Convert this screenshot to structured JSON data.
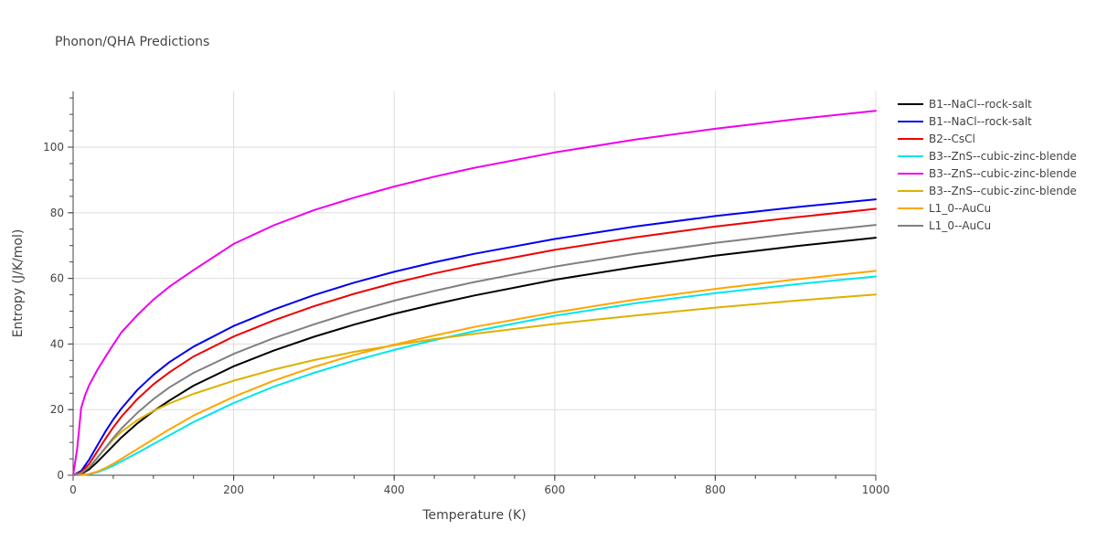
{
  "chart_data": {
    "type": "line",
    "title": "Phonon/QHA Predictions",
    "xlabel": "Temperature (K)",
    "ylabel": "Entropy (J/K/mol)",
    "xlim": [
      0,
      1000
    ],
    "ylim": [
      0,
      117
    ],
    "xticks": [
      0,
      200,
      400,
      600,
      800,
      1000
    ],
    "yticks": [
      0,
      20,
      40,
      60,
      80,
      100
    ],
    "grid": true,
    "legend": "right",
    "series": [
      {
        "name": "B1--NaCl--rock-salt",
        "color": "#000000",
        "x": [
          0,
          10,
          20,
          30,
          40,
          50,
          60,
          80,
          100,
          120,
          150,
          200,
          250,
          300,
          350,
          400,
          450,
          500,
          600,
          700,
          800,
          900,
          1000
        ],
        "y": [
          0,
          0.4,
          1.8,
          4.0,
          6.5,
          9.0,
          11.5,
          15.8,
          19.5,
          22.8,
          27.3,
          33.2,
          38.0,
          42.2,
          45.9,
          49.2,
          52.1,
          54.8,
          59.6,
          63.5,
          66.9,
          69.8,
          72.4
        ]
      },
      {
        "name": "B1--NaCl--rock-salt",
        "color": "#0000ee",
        "x": [
          0,
          10,
          20,
          30,
          40,
          50,
          60,
          80,
          100,
          120,
          150,
          200,
          250,
          300,
          350,
          400,
          450,
          500,
          600,
          700,
          800,
          900,
          1000
        ],
        "y": [
          0,
          1.3,
          4.8,
          9.0,
          13.2,
          17.0,
          20.3,
          26.0,
          30.6,
          34.5,
          39.2,
          45.5,
          50.5,
          54.9,
          58.7,
          62.0,
          64.9,
          67.5,
          72.0,
          75.8,
          79.0,
          81.7,
          84.1
        ]
      },
      {
        "name": "B2--CsCl",
        "color": "#ee0000",
        "x": [
          0,
          10,
          20,
          30,
          40,
          50,
          60,
          80,
          100,
          120,
          150,
          200,
          250,
          300,
          350,
          400,
          450,
          500,
          600,
          700,
          800,
          900,
          1000
        ],
        "y": [
          0,
          0.9,
          3.5,
          7.2,
          11.0,
          14.6,
          17.8,
          23.2,
          27.7,
          31.4,
          36.2,
          42.3,
          47.2,
          51.5,
          55.3,
          58.6,
          61.5,
          64.1,
          68.7,
          72.5,
          75.8,
          78.6,
          81.2
        ]
      },
      {
        "name": "B3--ZnS--cubic-zinc-blende",
        "color": "#00e5ee",
        "x": [
          0,
          10,
          20,
          30,
          40,
          50,
          60,
          80,
          100,
          120,
          150,
          200,
          250,
          300,
          350,
          400,
          450,
          500,
          600,
          700,
          800,
          900,
          1000
        ],
        "y": [
          0,
          0.05,
          0.3,
          0.9,
          1.8,
          2.9,
          4.2,
          6.8,
          9.5,
          12.2,
          16.2,
          22.0,
          27.0,
          31.2,
          34.9,
          38.2,
          41.2,
          43.9,
          48.6,
          52.4,
          55.5,
          58.2,
          60.6
        ]
      },
      {
        "name": "B3--ZnS--cubic-zinc-blende",
        "color": "#ee00ee",
        "x": [
          0,
          5,
          10,
          15,
          20,
          30,
          40,
          50,
          60,
          80,
          100,
          120,
          150,
          200,
          250,
          300,
          350,
          400,
          450,
          500,
          600,
          700,
          800,
          900,
          1000
        ],
        "y": [
          0,
          8.0,
          20.5,
          24.5,
          27.5,
          32.0,
          36.0,
          39.8,
          43.5,
          48.8,
          53.5,
          57.5,
          62.5,
          70.5,
          76.2,
          80.8,
          84.6,
          88.0,
          91.0,
          93.7,
          98.4,
          102.3,
          105.6,
          108.5,
          111.1
        ]
      },
      {
        "name": "B3--ZnS--cubic-zinc-blende",
        "color": "#ddb100",
        "x": [
          0,
          10,
          20,
          30,
          40,
          50,
          60,
          80,
          100,
          120,
          150,
          200,
          250,
          300,
          350,
          400,
          450,
          500,
          600,
          700,
          800,
          900,
          1000
        ],
        "y": [
          0,
          0.6,
          2.5,
          5.3,
          8.2,
          10.9,
          13.2,
          16.8,
          19.6,
          21.9,
          24.8,
          28.8,
          32.2,
          35.1,
          37.6,
          39.6,
          41.5,
          43.1,
          46.1,
          48.7,
          51.1,
          53.2,
          55.1
        ]
      },
      {
        "name": "L1_0--AuCu",
        "color": "#ffa500",
        "x": [
          0,
          10,
          20,
          30,
          40,
          50,
          60,
          80,
          100,
          120,
          150,
          200,
          250,
          300,
          350,
          400,
          450,
          500,
          600,
          700,
          800,
          900,
          1000
        ],
        "y": [
          0,
          0.08,
          0.4,
          1.1,
          2.2,
          3.5,
          5.0,
          8.0,
          11.0,
          14.0,
          18.2,
          23.9,
          28.8,
          33.0,
          36.7,
          39.8,
          42.6,
          45.2,
          49.6,
          53.5,
          56.8,
          59.7,
          62.3
        ]
      },
      {
        "name": "L1_0--AuCu",
        "color": "#808080",
        "x": [
          0,
          10,
          20,
          30,
          40,
          50,
          60,
          80,
          100,
          120,
          150,
          200,
          250,
          300,
          350,
          400,
          450,
          500,
          600,
          700,
          800,
          900,
          1000
        ],
        "y": [
          0,
          0.6,
          2.4,
          5.2,
          8.3,
          11.4,
          14.2,
          19.0,
          23.2,
          26.8,
          31.2,
          37.0,
          41.8,
          46.0,
          49.8,
          53.2,
          56.2,
          58.9,
          63.6,
          67.5,
          70.8,
          73.7,
          76.3
        ]
      }
    ]
  }
}
